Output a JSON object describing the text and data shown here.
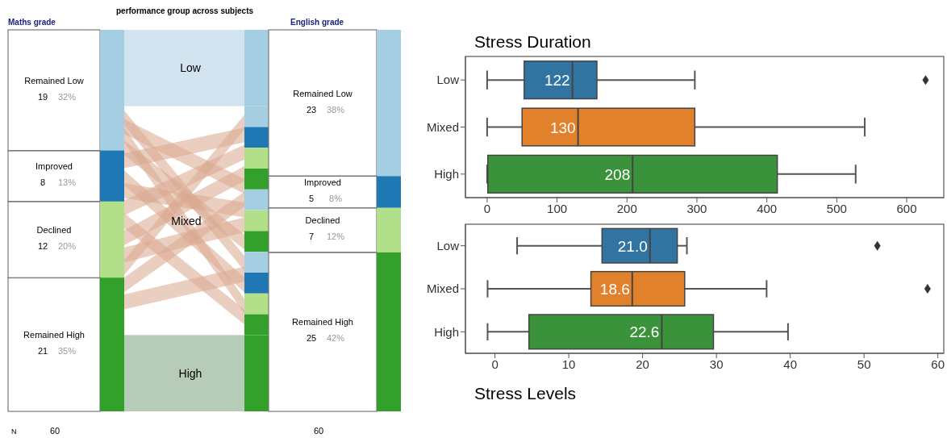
{
  "chart_data": [
    {
      "type": "other",
      "title": "performance group across subjects",
      "categories": [
        "Remained Low",
        "Improved",
        "Declined",
        "Remained High"
      ],
      "colors": [
        "#a6cee3",
        "#1f78b4",
        "#b2df8a",
        "#33a02c"
      ],
      "series": [
        {
          "name": "Maths grade",
          "values": [
            19,
            8,
            12,
            21
          ]
        },
        {
          "name": "English grade",
          "values": [
            23,
            5,
            7,
            25
          ]
        }
      ],
      "data_labels": true,
      "annotations": [
        "Low",
        "Mixed",
        "High",
        "N",
        "60",
        "60",
        "32%",
        "13%",
        "20%",
        "35%",
        "38%",
        "8%",
        "12%",
        "42%"
      ]
    },
    {
      "type": "box",
      "orientation": "horizontal",
      "title": "Stress Duration",
      "categories": [
        "Low",
        "Mixed",
        "High"
      ],
      "colors": [
        "#3274a1",
        "#e1812c",
        "#3a923a"
      ],
      "boxes": [
        {
          "low": 0,
          "q1": 53,
          "median": 122,
          "q3": 157,
          "high": 297,
          "outliers": [
            627
          ]
        },
        {
          "low": 0,
          "q1": 50,
          "median": 130,
          "q3": 297,
          "high": 540
        },
        {
          "low": 0,
          "q1": 1,
          "median": 208,
          "q3": 415,
          "high": 527
        }
      ],
      "xlim": [
        -31,
        653
      ],
      "xticks": [
        0,
        100,
        200,
        300,
        400,
        500,
        600
      ],
      "grid": false,
      "annotations": [
        "122",
        "130",
        "208"
      ]
    },
    {
      "type": "box",
      "orientation": "horizontal",
      "xlabel": "Stress Levels",
      "categories": [
        "Low",
        "Mixed",
        "High"
      ],
      "colors": [
        "#3274a1",
        "#e1812c",
        "#3a923a"
      ],
      "boxes": [
        {
          "low": 3,
          "q1": 14.5,
          "median": 21.0,
          "q3": 24.7,
          "high": 26,
          "outliers": [
            51.8
          ]
        },
        {
          "low": -1,
          "q1": 13,
          "median": 18.6,
          "q3": 25.7,
          "high": 36.8,
          "outliers": [
            58.6
          ]
        },
        {
          "low": -1,
          "q1": 4.6,
          "median": 22.6,
          "q3": 29.6,
          "high": 39.7
        }
      ],
      "xlim": [
        -4,
        60.8
      ],
      "xticks": [
        0,
        10,
        20,
        30,
        40,
        50,
        60
      ],
      "grid": false,
      "annotations": [
        "21.0",
        "18.6",
        "22.6"
      ]
    }
  ]
}
